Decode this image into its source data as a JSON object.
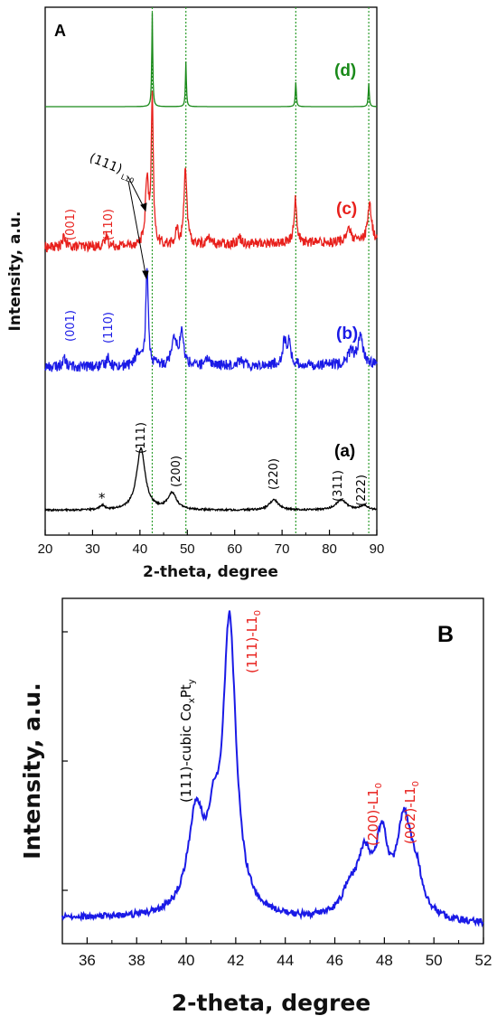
{
  "chart_data": [
    {
      "panel": "A",
      "type": "line",
      "xlabel": "2-theta, degree",
      "ylabel": "Intensity, a.u.",
      "xlim": [
        20,
        90
      ],
      "xticks": [
        20,
        30,
        40,
        50,
        60,
        70,
        80,
        90
      ],
      "reference_lines_x": [
        42.6,
        49.7,
        72.9,
        88.3
      ],
      "reference_line_color": "#2e9e2e",
      "series": [
        {
          "name": "(d)",
          "color": "#1a8a1a",
          "noise": 0.0,
          "baseline": [
            [
              20,
              0.0
            ],
            [
              90,
              0.0
            ]
          ],
          "peaks": [
            [
              42.6,
              1.0,
              0.12
            ],
            [
              49.7,
              0.48,
              0.12
            ],
            [
              72.9,
              0.26,
              0.13
            ],
            [
              88.3,
              0.25,
              0.13
            ]
          ]
        },
        {
          "name": "(c)",
          "color": "#e8201c",
          "noise": 0.035,
          "baseline": [
            [
              20,
              0.06
            ],
            [
              90,
              0.1
            ]
          ],
          "peaks": [
            [
              24.0,
              0.07,
              0.35
            ],
            [
              33.0,
              0.08,
              0.3
            ],
            [
              41.5,
              0.45,
              0.4
            ],
            [
              42.6,
              1.0,
              0.25
            ],
            [
              47.8,
              0.1,
              0.3
            ],
            [
              49.6,
              0.55,
              0.35
            ],
            [
              54.5,
              0.05,
              0.4
            ],
            [
              61.0,
              0.04,
              0.6
            ],
            [
              72.8,
              0.3,
              0.35
            ],
            [
              84.0,
              0.1,
              0.5
            ],
            [
              88.5,
              0.25,
              0.5
            ]
          ]
        },
        {
          "name": "(b)",
          "color": "#1a1ae6",
          "noise": 0.05,
          "baseline": [
            [
              20,
              0.06
            ],
            [
              90,
              0.08
            ]
          ],
          "peaks": [
            [
              24.0,
              0.08,
              0.4
            ],
            [
              33.3,
              0.1,
              0.35
            ],
            [
              39.5,
              0.12,
              0.6
            ],
            [
              41.5,
              0.95,
              0.3
            ],
            [
              47.2,
              0.28,
              0.6
            ],
            [
              48.8,
              0.3,
              0.5
            ],
            [
              54.5,
              0.07,
              0.5
            ],
            [
              61.0,
              0.05,
              0.8
            ],
            [
              70.5,
              0.22,
              0.5
            ],
            [
              71.5,
              0.2,
              0.4
            ],
            [
              84.5,
              0.12,
              0.7
            ],
            [
              86.5,
              0.25,
              0.7
            ]
          ]
        },
        {
          "name": "(a)",
          "color": "#000000",
          "noise": 0.012,
          "baseline": [
            [
              20,
              0.03
            ],
            [
              90,
              0.03
            ]
          ],
          "peaks": [
            [
              32.0,
              0.06,
              0.6
            ],
            [
              40.2,
              0.85,
              1.1
            ],
            [
              46.8,
              0.23,
              1.1
            ],
            [
              68.3,
              0.14,
              1.2
            ],
            [
              82.5,
              0.14,
              1.4
            ],
            [
              87.3,
              0.06,
              1.0
            ]
          ]
        }
      ],
      "annotations": [
        {
          "text": "A"
        },
        {
          "text": "(001)",
          "series": "(c)"
        },
        {
          "text": "(110)",
          "series": "(c)"
        },
        {
          "text": "(111)",
          "sub": "L10",
          "series": "(c)"
        },
        {
          "text": "(001)",
          "series": "(b)"
        },
        {
          "text": "(110)",
          "series": "(b)"
        },
        {
          "text": "(111)",
          "series": "(a)"
        },
        {
          "text": "(200)",
          "series": "(a)"
        },
        {
          "text": "(220)",
          "series": "(a)"
        },
        {
          "text": "(311)",
          "series": "(a)"
        },
        {
          "text": "(222)",
          "series": "(a)"
        },
        {
          "text": "*",
          "series": "(a)"
        }
      ]
    },
    {
      "panel": "B",
      "type": "line",
      "xlabel": "2-theta, degree",
      "ylabel": "Intensity, a.u.",
      "xlim": [
        35,
        52
      ],
      "xticks": [
        36,
        38,
        40,
        42,
        44,
        46,
        48,
        50,
        52
      ],
      "series": [
        {
          "name": "",
          "color": "#1a1ae6",
          "noise": 0.01,
          "baseline": [
            [
              35,
              0.04
            ],
            [
              52,
              0.02
            ]
          ],
          "peaks": [
            [
              40.4,
              0.3,
              0.4
            ],
            [
              41.1,
              0.18,
              0.25
            ],
            [
              41.75,
              0.89,
              0.32
            ],
            [
              46.6,
              0.07,
              0.4
            ],
            [
              47.2,
              0.17,
              0.35
            ],
            [
              47.9,
              0.22,
              0.3
            ],
            [
              48.8,
              0.29,
              0.35
            ],
            [
              49.3,
              0.1,
              0.3
            ]
          ]
        }
      ],
      "annotations": [
        {
          "text": "B"
        },
        {
          "text": "(111)-cubic Co",
          "sub1": "x",
          "mid": "Pt",
          "sub2": "y"
        },
        {
          "text": "(111)-L1",
          "sub": "0"
        },
        {
          "text": "(200)-L1",
          "sub": "0"
        },
        {
          "text": "(002)-L1",
          "sub": "0"
        }
      ]
    }
  ]
}
